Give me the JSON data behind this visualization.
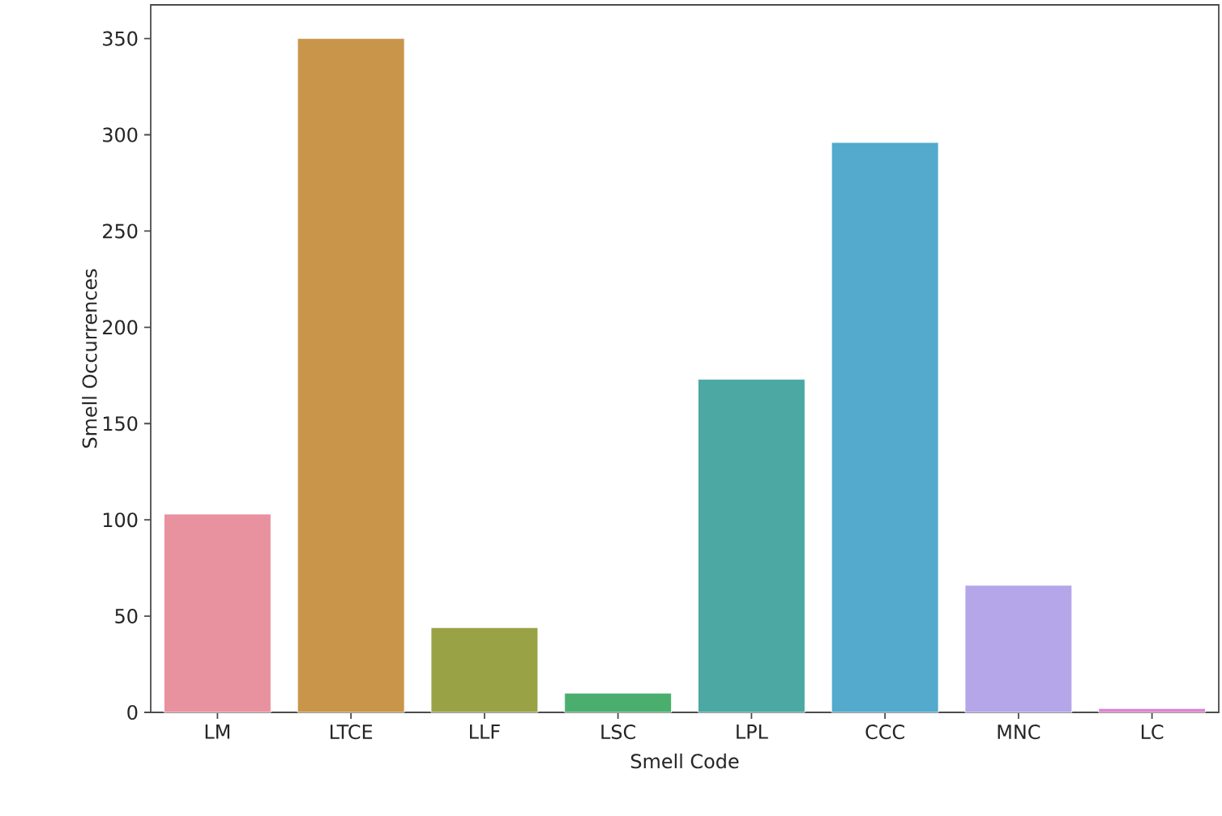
{
  "chart_data": {
    "type": "bar",
    "xlabel": "Smell Code",
    "ylabel": "Smell Occurrences",
    "categories": [
      "LM",
      "LTCE",
      "LLF",
      "LSC",
      "LPL",
      "CCC",
      "MNC",
      "LC"
    ],
    "values": [
      103,
      350,
      44,
      10,
      173,
      296,
      66,
      2
    ],
    "colors": [
      "#e8929f",
      "#c8954a",
      "#99a345",
      "#4aaf6e",
      "#4ba8a3",
      "#53aacd",
      "#b5a6e9",
      "#dd83d0"
    ],
    "ylim": [
      0,
      367.5
    ],
    "yticks": [
      0,
      50,
      100,
      150,
      200,
      250,
      300,
      350
    ]
  }
}
